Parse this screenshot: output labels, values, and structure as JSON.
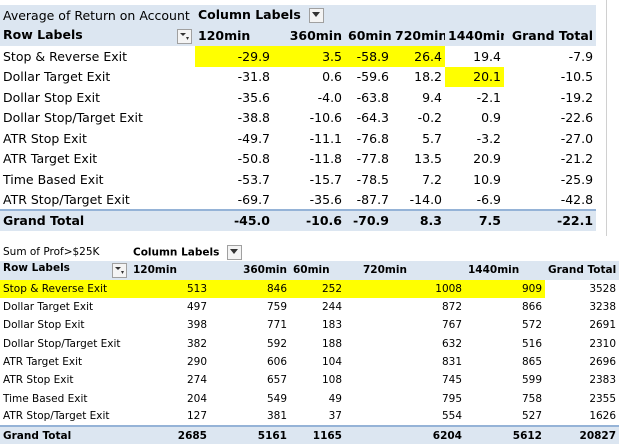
{
  "pivot1": {
    "title": "Average of Return on Account",
    "column_labels": "Column Labels",
    "row_labels": "Row Labels",
    "columns": [
      "120min",
      "360min",
      "60min",
      "720min",
      "1440min",
      "Grand Total"
    ],
    "rows": [
      {
        "label": "Stop & Reverse Exit",
        "values": [
          "-29.9",
          "3.5",
          "-58.9",
          "26.4",
          "19.4",
          "-7.9"
        ]
      },
      {
        "label": "Dollar Target Exit",
        "values": [
          "-31.8",
          "0.6",
          "-59.6",
          "18.2",
          "20.1",
          "-10.5"
        ]
      },
      {
        "label": "Dollar Stop Exit",
        "values": [
          "-35.6",
          "-4.0",
          "-63.8",
          "9.4",
          "-2.1",
          "-19.2"
        ]
      },
      {
        "label": "Dollar Stop/Target Exit",
        "values": [
          "-38.8",
          "-10.6",
          "-64.3",
          "-0.2",
          "0.9",
          "-22.6"
        ]
      },
      {
        "label": "ATR Stop Exit",
        "values": [
          "-49.7",
          "-11.1",
          "-76.8",
          "5.7",
          "-3.2",
          "-27.0"
        ]
      },
      {
        "label": "ATR Target Exit",
        "values": [
          "-50.8",
          "-11.8",
          "-77.8",
          "13.5",
          "20.9",
          "-21.2"
        ]
      },
      {
        "label": "Time Based Exit",
        "values": [
          "-53.7",
          "-15.7",
          "-78.5",
          "7.2",
          "10.9",
          "-25.9"
        ]
      },
      {
        "label": "ATR Stop/Target Exit",
        "values": [
          "-69.7",
          "-35.6",
          "-87.7",
          "-14.0",
          "-6.9",
          "-42.8"
        ]
      }
    ],
    "grand_total": {
      "label": "Grand Total",
      "values": [
        "-45.0",
        "-10.6",
        "-70.9",
        "8.3",
        "7.5",
        "-22.1"
      ]
    }
  },
  "pivot2": {
    "title": "Sum of Prof>$25K",
    "column_labels": "Column Labels",
    "row_labels": "Row Labels",
    "columns": [
      "120min",
      "360min",
      "60min",
      "720min",
      "1440min",
      "Grand Total"
    ],
    "rows": [
      {
        "label": "Stop & Reverse Exit",
        "values": [
          "513",
          "846",
          "252",
          "1008",
          "909",
          "3528"
        ]
      },
      {
        "label": "Dollar Target Exit",
        "values": [
          "497",
          "759",
          "244",
          "872",
          "866",
          "3238"
        ]
      },
      {
        "label": "Dollar Stop Exit",
        "values": [
          "398",
          "771",
          "183",
          "767",
          "572",
          "2691"
        ]
      },
      {
        "label": "Dollar Stop/Target Exit",
        "values": [
          "382",
          "592",
          "188",
          "632",
          "516",
          "2310"
        ]
      },
      {
        "label": "ATR Target Exit",
        "values": [
          "290",
          "606",
          "104",
          "831",
          "865",
          "2696"
        ]
      },
      {
        "label": "ATR Stop Exit",
        "values": [
          "274",
          "657",
          "108",
          "745",
          "599",
          "2383"
        ]
      },
      {
        "label": "Time Based Exit",
        "values": [
          "204",
          "549",
          "49",
          "795",
          "758",
          "2355"
        ]
      },
      {
        "label": "ATR Stop/Target Exit",
        "values": [
          "127",
          "381",
          "37",
          "554",
          "527",
          "1626"
        ]
      }
    ],
    "grand_total": {
      "label": "Grand Total",
      "values": [
        "2685",
        "5161",
        "1165",
        "6204",
        "5612",
        "20827"
      ]
    }
  },
  "colors": {
    "header_bg": "#dce6f1",
    "highlight": "#ffff00",
    "border": "#95b3d7"
  },
  "icons": {
    "dropdown": "dropdown-arrow-icon",
    "filter": "filter-dropdown-icon"
  }
}
